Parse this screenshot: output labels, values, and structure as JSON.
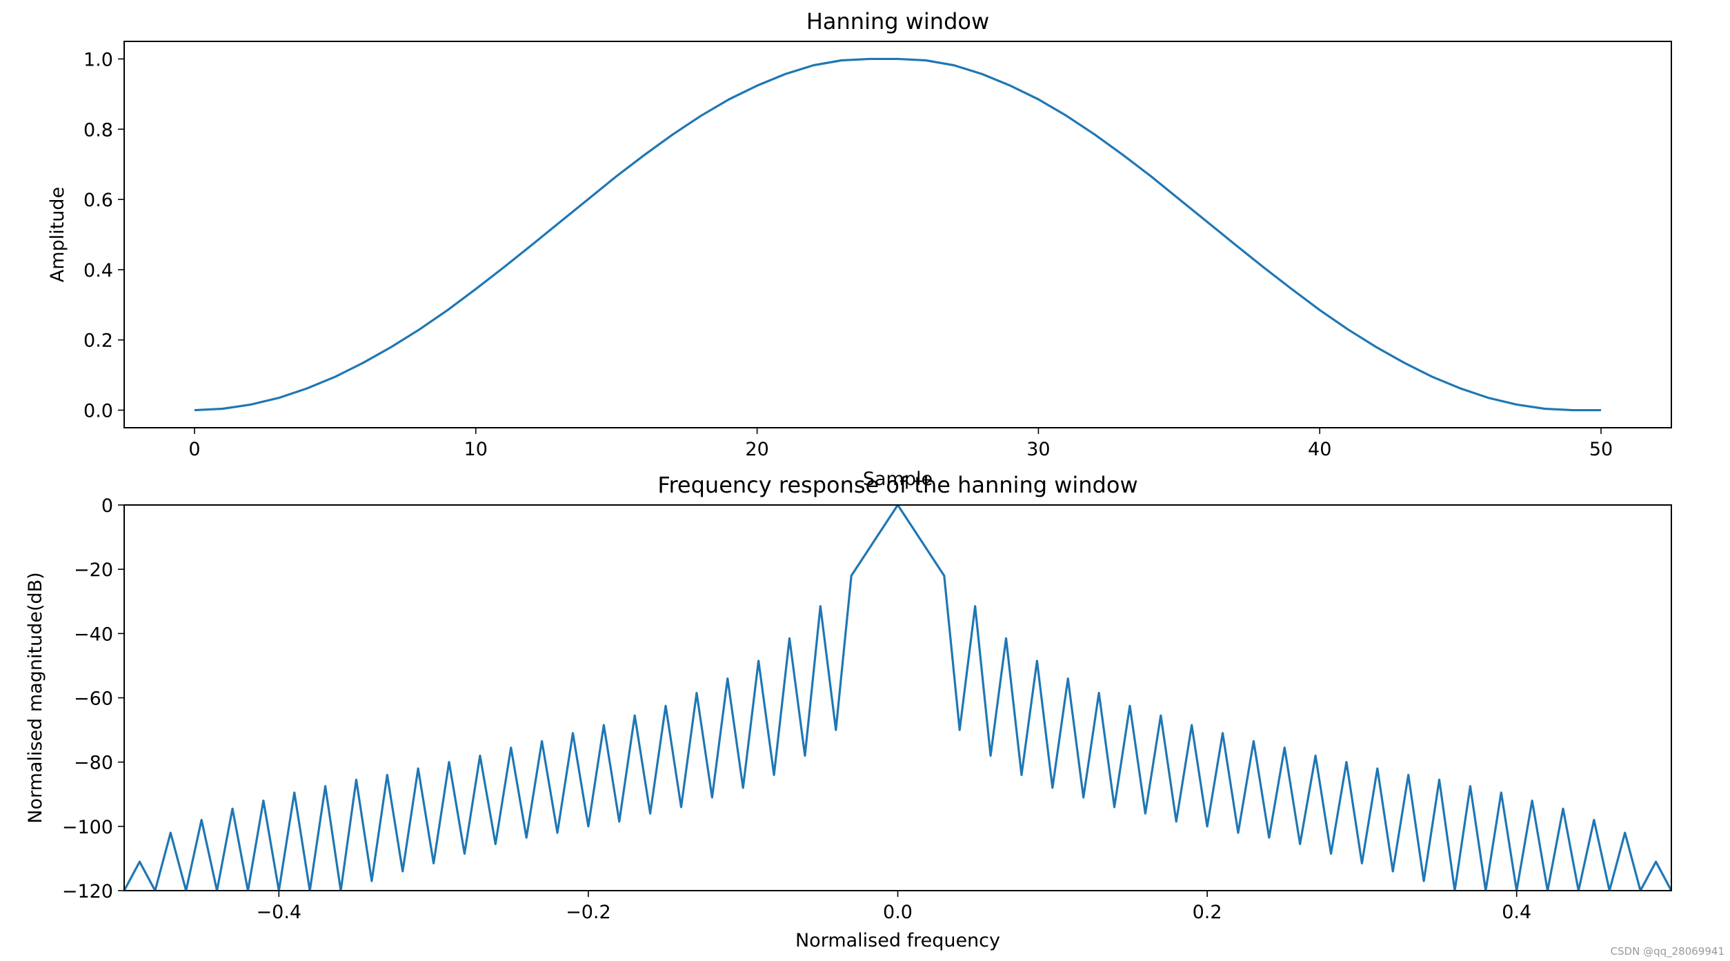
{
  "colors": {
    "line": "#1f77b4"
  },
  "watermark": "CSDN @qq_28069941",
  "chart_data": [
    {
      "type": "line",
      "title": "Hanning window",
      "xlabel": "Sample",
      "ylabel": "Amplitude",
      "xlim": [
        -2.5,
        52.5
      ],
      "ylim": [
        -0.05,
        1.05
      ],
      "xticks": [
        0,
        10,
        20,
        30,
        40,
        50
      ],
      "xtick_labels": [
        "0",
        "10",
        "20",
        "30",
        "40",
        "50"
      ],
      "yticks": [
        0.0,
        0.2,
        0.4,
        0.6,
        0.8,
        1.0
      ],
      "ytick_labels": [
        "0.0",
        "0.2",
        "0.4",
        "0.6",
        "0.8",
        "1.0"
      ],
      "grid": false,
      "series": [
        {
          "x": [
            0,
            1,
            2,
            3,
            4,
            5,
            6,
            7,
            8,
            9,
            10,
            11,
            12,
            13,
            14,
            15,
            16,
            17,
            18,
            19,
            20,
            21,
            22,
            23,
            24,
            25,
            26,
            27,
            28,
            29,
            30,
            31,
            32,
            33,
            34,
            35,
            36,
            37,
            38,
            39,
            40,
            41,
            42,
            43,
            44,
            45,
            46,
            47,
            48,
            49,
            50
          ],
          "y": [
            0.0,
            0.004,
            0.016,
            0.035,
            0.062,
            0.095,
            0.135,
            0.18,
            0.23,
            0.285,
            0.345,
            0.407,
            0.471,
            0.536,
            0.601,
            0.666,
            0.727,
            0.785,
            0.838,
            0.885,
            0.924,
            0.957,
            0.982,
            0.996,
            1.0,
            1.0,
            0.996,
            0.982,
            0.957,
            0.924,
            0.885,
            0.838,
            0.785,
            0.727,
            0.666,
            0.601,
            0.536,
            0.471,
            0.407,
            0.345,
            0.285,
            0.23,
            0.18,
            0.135,
            0.095,
            0.062,
            0.035,
            0.016,
            0.004,
            0.0,
            0.0
          ]
        }
      ]
    },
    {
      "type": "line",
      "title": "Frequency response of the hanning window",
      "xlabel": "Normalised frequency",
      "ylabel": "Normalised magnitude(dB)",
      "xlim": [
        -0.5,
        0.5
      ],
      "ylim": [
        -120,
        0
      ],
      "xticks": [
        -0.4,
        -0.2,
        0.0,
        0.2,
        0.4
      ],
      "xtick_labels": [
        "−0.4",
        "−0.2",
        "0.0",
        "0.2",
        "0.4"
      ],
      "yticks": [
        0,
        -20,
        -40,
        -60,
        -80,
        -100,
        -120
      ],
      "ytick_labels": [
        "0",
        "−20",
        "−40",
        "−60",
        "−80",
        "−100",
        "−120"
      ],
      "grid": false,
      "series": [
        {
          "x": [
            0.0,
            0.03,
            0.04,
            0.05,
            0.06,
            0.07,
            0.08,
            0.09,
            0.1,
            0.11,
            0.12,
            0.13,
            0.14,
            0.15,
            0.16,
            0.17,
            0.18,
            0.19,
            0.2,
            0.21,
            0.22,
            0.23,
            0.24,
            0.25,
            0.26,
            0.27,
            0.28,
            0.29,
            0.3,
            0.31,
            0.32,
            0.33,
            0.34,
            0.35,
            0.36,
            0.37,
            0.38,
            0.39,
            0.4,
            0.41,
            0.42,
            0.43,
            0.44,
            0.45,
            0.46,
            0.47,
            0.48,
            0.49,
            0.5
          ],
          "y": [
            0,
            -22,
            -70,
            -31.5,
            -78,
            -41.5,
            -84,
            -48.5,
            -88,
            -54,
            -91,
            -58.5,
            -94,
            -62.5,
            -96,
            -65.5,
            -98.5,
            -68.5,
            -100,
            -71,
            -102,
            -73.5,
            -103.5,
            -75.5,
            -105.5,
            -78,
            -108.5,
            -80,
            -111.5,
            -82,
            -114,
            -84,
            -117,
            -85.5,
            -120,
            -87.5,
            -120,
            -89.5,
            -120,
            -92,
            -120,
            -94.5,
            -120,
            -98,
            -120,
            -102,
            -120,
            -111,
            -120
          ],
          "symmetric_about_zero": true
        }
      ]
    }
  ]
}
